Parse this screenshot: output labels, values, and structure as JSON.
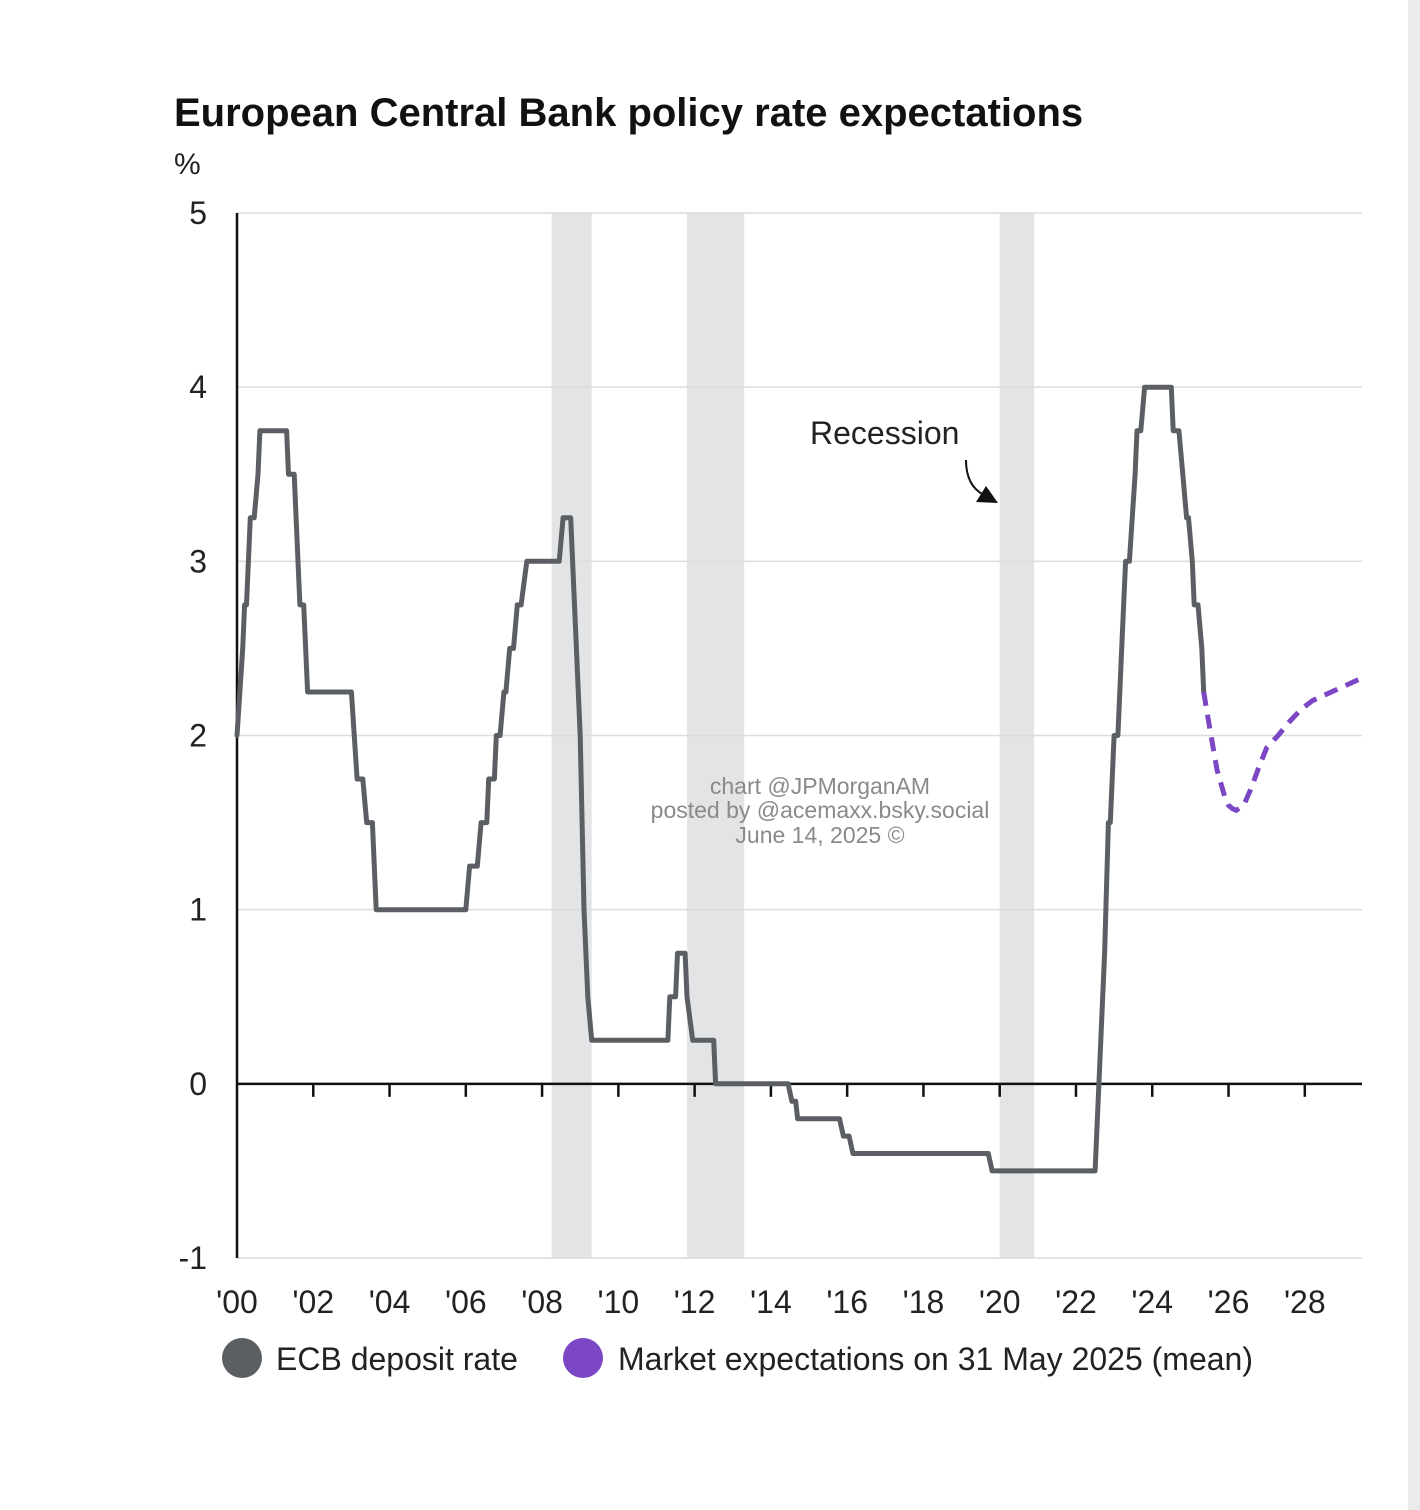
{
  "chart_data": {
    "type": "line",
    "title": "European Central Bank policy rate expectations",
    "ylabel": "%",
    "xlabel": "",
    "ylim": [
      -1,
      5
    ],
    "xlim": [
      2000,
      2029.5
    ],
    "yticks": [
      {
        "value": 5,
        "label": "5"
      },
      {
        "value": 4,
        "label": "4"
      },
      {
        "value": 3,
        "label": "3"
      },
      {
        "value": 2,
        "label": "2"
      },
      {
        "value": 1,
        "label": "1"
      },
      {
        "value": 0,
        "label": "0"
      },
      {
        "value": -1,
        "label": "-1"
      }
    ],
    "xticks": [
      {
        "value": 2000,
        "label": "'00"
      },
      {
        "value": 2002,
        "label": "'02"
      },
      {
        "value": 2004,
        "label": "'04"
      },
      {
        "value": 2006,
        "label": "'06"
      },
      {
        "value": 2008,
        "label": "'08"
      },
      {
        "value": 2010,
        "label": "'10"
      },
      {
        "value": 2012,
        "label": "'12"
      },
      {
        "value": 2014,
        "label": "'14"
      },
      {
        "value": 2016,
        "label": "'16"
      },
      {
        "value": 2018,
        "label": "'18"
      },
      {
        "value": 2020,
        "label": "'20"
      },
      {
        "value": 2022,
        "label": "'22"
      },
      {
        "value": 2024,
        "label": "'24"
      },
      {
        "value": 2026,
        "label": "'26"
      },
      {
        "value": 2028,
        "label": "'28"
      }
    ],
    "grid": true,
    "legend_position": "bottom",
    "recessions": [
      {
        "start": 2008.25,
        "end": 2009.3
      },
      {
        "start": 2011.8,
        "end": 2013.3
      },
      {
        "start": 2020.0,
        "end": 2020.9
      }
    ],
    "annotations": [
      {
        "text": "Recession",
        "x": 2016.8,
        "y": 3.75
      }
    ],
    "watermark": [
      "chart @JPMorganAM",
      "posted by @acemaxx.bsky.social",
      "June 14, 2025 ©"
    ],
    "series": [
      {
        "name": "ECB deposit rate",
        "color": "#5b5e63",
        "style": "solid",
        "x": [
          2000.0,
          2000.15,
          2000.2,
          2000.25,
          2000.35,
          2000.4,
          2000.45,
          2000.55,
          2000.6,
          2000.65,
          2000.75,
          2000.8,
          2001.3,
          2001.35,
          2001.5,
          2001.55,
          2001.65,
          2001.7,
          2001.75,
          2001.85,
          2001.9,
          2002.9,
          2003.0,
          2003.15,
          2003.3,
          2003.4,
          2003.55,
          2003.65,
          2003.8,
          2003.95,
          2006.0,
          2006.1,
          2006.3,
          2006.4,
          2006.5,
          2006.55,
          2006.6,
          2006.75,
          2006.8,
          2006.9,
          2007.0,
          2007.05,
          2007.15,
          2007.25,
          2007.35,
          2007.45,
          2007.6,
          2007.7,
          2008.45,
          2008.55,
          2008.75,
          2008.8,
          2009.0,
          2009.1,
          2009.2,
          2009.3,
          2009.35,
          2011.3,
          2011.35,
          2011.5,
          2011.55,
          2011.75,
          2011.8,
          2011.95,
          2012.0,
          2012.5,
          2012.55,
          2012.6,
          2012.65,
          2014.45,
          2014.55,
          2014.65,
          2014.7,
          2014.8,
          2015.0,
          2015.8,
          2015.9,
          2016.05,
          2016.15,
          2016.25,
          2016.35,
          2019.6,
          2019.7,
          2019.8,
          2019.9,
          2022.4,
          2022.5,
          2022.6,
          2022.75,
          2022.85,
          2022.9,
          2023.0,
          2023.1,
          2023.2,
          2023.3,
          2023.4,
          2023.55,
          2023.6,
          2023.7,
          2023.8,
          2024.4,
          2024.5,
          2024.55,
          2024.7,
          2024.8,
          2024.9,
          2024.95,
          2025.05,
          2025.1,
          2025.2,
          2025.3,
          2025.35
        ],
        "y": [
          2.0,
          2.5,
          2.75,
          2.75,
          3.25,
          3.25,
          3.25,
          3.5,
          3.75,
          3.75,
          3.75,
          3.75,
          3.75,
          3.5,
          3.5,
          3.25,
          2.75,
          2.75,
          2.75,
          2.25,
          2.25,
          2.25,
          2.25,
          1.75,
          1.75,
          1.5,
          1.5,
          1.0,
          1.0,
          1.0,
          1.0,
          1.25,
          1.25,
          1.5,
          1.5,
          1.5,
          1.75,
          1.75,
          2.0,
          2.0,
          2.25,
          2.25,
          2.5,
          2.5,
          2.75,
          2.75,
          3.0,
          3.0,
          3.0,
          3.25,
          3.25,
          3.0,
          2.0,
          1.0,
          0.5,
          0.25,
          0.25,
          0.25,
          0.5,
          0.5,
          0.75,
          0.75,
          0.5,
          0.25,
          0.25,
          0.25,
          0.0,
          0.0,
          0.0,
          0.0,
          -0.1,
          -0.1,
          -0.2,
          -0.2,
          -0.2,
          -0.2,
          -0.3,
          -0.3,
          -0.4,
          -0.4,
          -0.4,
          -0.4,
          -0.4,
          -0.5,
          -0.5,
          -0.5,
          -0.5,
          0.0,
          0.75,
          1.5,
          1.5,
          2.0,
          2.0,
          2.5,
          3.0,
          3.0,
          3.5,
          3.75,
          3.75,
          4.0,
          4.0,
          4.0,
          3.75,
          3.75,
          3.5,
          3.25,
          3.25,
          3.0,
          2.75,
          2.75,
          2.5,
          2.25
        ]
      },
      {
        "name": "Market expectations on 31 May 2025 (mean)",
        "color": "#7b47c5",
        "style": "dashed",
        "x": [
          2025.35,
          2025.5,
          2025.7,
          2025.9,
          2026.0,
          2026.1,
          2026.2,
          2026.4,
          2026.6,
          2026.8,
          2027.0,
          2027.3,
          2027.6,
          2027.9,
          2028.2,
          2028.5,
          2028.8,
          2029.1,
          2029.5
        ],
        "y": [
          2.25,
          2.05,
          1.8,
          1.65,
          1.6,
          1.58,
          1.57,
          1.6,
          1.7,
          1.82,
          1.93,
          2.0,
          2.08,
          2.15,
          2.2,
          2.23,
          2.26,
          2.29,
          2.33
        ]
      }
    ]
  }
}
